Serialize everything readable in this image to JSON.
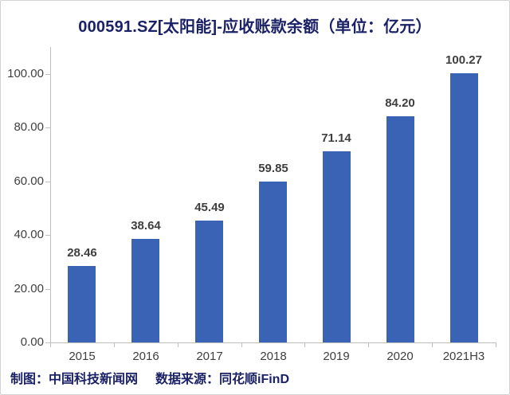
{
  "title": "000591.SZ[太阳能]-应收账款余额（单位：亿元）",
  "footer": {
    "credit": "制图：中国科技新闻网",
    "source": "数据来源：同花顺iFinD"
  },
  "colors": {
    "bar": "#3a62b5",
    "title_text": "#1b2166",
    "footer_text": "#1b2166",
    "tick_text": "#3f3f3f",
    "axis_line": "#bfbfbf"
  },
  "chart_data": {
    "type": "bar",
    "title": "000591.SZ[太阳能]-应收账款余额（单位：亿元）",
    "categories": [
      "2015",
      "2016",
      "2017",
      "2018",
      "2019",
      "2020",
      "2021H3"
    ],
    "values": [
      28.46,
      38.64,
      45.49,
      59.85,
      71.14,
      84.2,
      100.27
    ],
    "value_labels": [
      "28.46",
      "38.64",
      "45.49",
      "59.85",
      "71.14",
      "84.20",
      "100.27"
    ],
    "xlabel": "",
    "ylabel": "",
    "ylim": [
      0,
      110
    ],
    "yticks": [
      0,
      20,
      40,
      60,
      80,
      100
    ],
    "ytick_labels": [
      "0.00",
      "20.00",
      "40.00",
      "60.00",
      "80.00",
      "100.00"
    ],
    "grid": false,
    "legend": "none",
    "series_color": "#3a62b5"
  }
}
